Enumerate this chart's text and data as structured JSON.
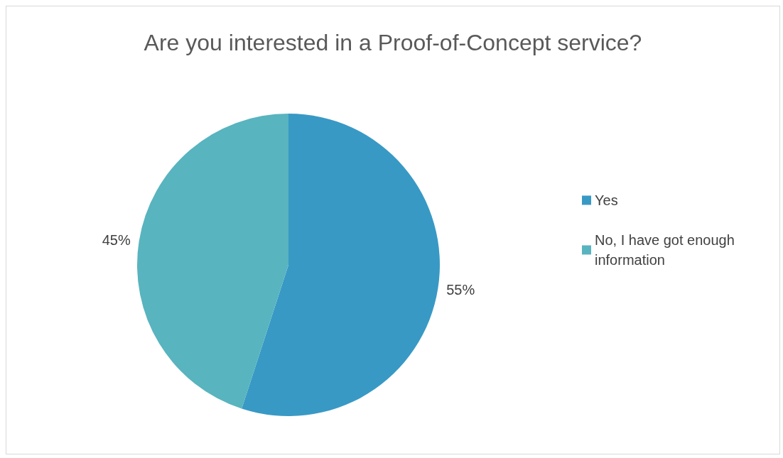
{
  "chart_data": {
    "type": "pie",
    "title": "Are you interested in a Proof-of-Concept service?",
    "categories": [
      "Yes",
      "No, I have got enough information"
    ],
    "values": [
      55,
      45
    ],
    "colors": [
      "#3899c5",
      "#58b4bf"
    ],
    "value_labels": [
      "55%",
      "45%"
    ],
    "legend": "right"
  }
}
